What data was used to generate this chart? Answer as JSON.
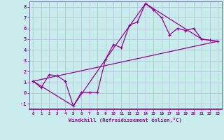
{
  "xlabel": "Windchill (Refroidissement éolien,°C)",
  "bg_color": "#c8ecec",
  "line_color": "#990099",
  "grid_color": "#b0c8d8",
  "spine_color": "#7070a0",
  "xlim": [
    -0.5,
    23.5
  ],
  "ylim": [
    -1.5,
    8.5
  ],
  "xticks": [
    0,
    1,
    2,
    3,
    4,
    5,
    6,
    7,
    8,
    9,
    10,
    11,
    12,
    13,
    14,
    15,
    16,
    17,
    18,
    19,
    20,
    21,
    22,
    23
  ],
  "yticks": [
    -1,
    0,
    1,
    2,
    3,
    4,
    5,
    6,
    7,
    8
  ],
  "line1_x": [
    0,
    1,
    2,
    3,
    4,
    5,
    6,
    7,
    8,
    9,
    10,
    11,
    12,
    13,
    14,
    15,
    16,
    17,
    18,
    19,
    20,
    21,
    22,
    23
  ],
  "line1_y": [
    1.1,
    0.5,
    1.7,
    1.6,
    1.1,
    -1.2,
    0.05,
    0.05,
    0.05,
    3.1,
    4.5,
    4.2,
    6.3,
    6.6,
    8.3,
    7.7,
    7.0,
    5.4,
    6.0,
    5.8,
    6.0,
    5.0,
    4.9,
    4.8
  ],
  "line2_x": [
    0,
    23
  ],
  "line2_y": [
    1.1,
    4.8
  ],
  "line3_x": [
    0,
    5,
    9,
    14,
    21,
    23
  ],
  "line3_y": [
    1.1,
    -1.2,
    3.1,
    8.3,
    5.0,
    4.8
  ]
}
